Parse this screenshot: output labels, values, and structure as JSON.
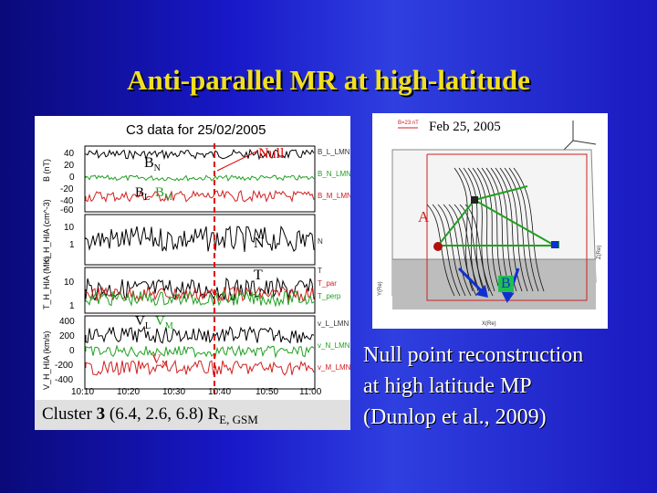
{
  "slide": {
    "title": "Anti-parallel MR at high-latitude",
    "left_figure": {
      "plot_title": "C3 data for 25/02/2005",
      "annotations": {
        "null": "Null",
        "bn": "B",
        "bn_sub": "N",
        "bl": "B",
        "bl_sub": "L",
        "bm": "B",
        "bm_sub": "M",
        "n": "N",
        "t": "T",
        "vl": "V",
        "vl_sub": "L",
        "vm": "V",
        "vm_sub": "M",
        "vn": "V",
        "vn_sub": "N"
      },
      "y_axes": [
        "B (nT)",
        "n_H_HIA (cm^-3)",
        "T_H_HIA (MK)",
        "V_H_HIA (km/s)"
      ],
      "legend": [
        "B_L_LMN",
        "B_N_LMN",
        "B_M_LMN",
        "N",
        "T",
        "T_par",
        "T_perp",
        "v_L_LMN",
        "v_N_LMN",
        "v_M_LMN"
      ],
      "x_ticks": [
        "10:10",
        "10:20",
        "10:30",
        "10:40",
        "10:50",
        "11:00"
      ]
    },
    "caption": {
      "prefix": "Cluster",
      "number": "3",
      "coords": "(6.4, 2.6, 6.8) R",
      "sub": "E, GSM"
    },
    "right_figure": {
      "date": "Feb 25, 2005",
      "label_a": "A",
      "label_b": "B",
      "scale_label": "B=23 nT",
      "axis_x": "X(Re)",
      "axis_y": "Y(Re)",
      "axis_z": "Z(Re)"
    },
    "right_text": [
      "Null point reconstruction",
      "at high latitude MP",
      "(Dunlop et al., 2009)"
    ]
  },
  "colors": {
    "title": "#f0e020",
    "background": "#1a1ac0",
    "trace_black": "#000000",
    "trace_red": "#d02020",
    "trace_green": "#20a020",
    "null_line": "#e00000"
  }
}
